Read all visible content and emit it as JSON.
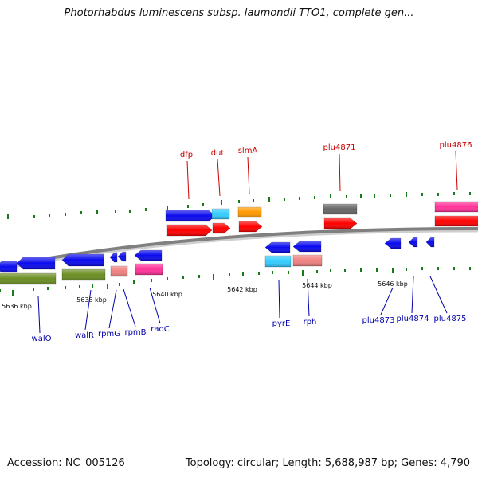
{
  "header": {
    "title": "Photorhabdus luminescens subsp. laumondii TTO1, complete gen..."
  },
  "footer": {
    "accession": "Accession: NC_005126",
    "summary": "Topology: circular; Length: 5,688,987 bp; Genes: 4,790"
  },
  "colors": {
    "forward_label": "#cc0000",
    "reverse_label": "#0000aa",
    "backbone": "#808080",
    "tick": "#1a7a1a"
  },
  "kbp_ticks": [
    "5636 kbp",
    "5638 kbp",
    "5640 kbp",
    "5642 kbp",
    "5644 kbp",
    "5646 kbp"
  ],
  "genes_forward": [
    {
      "name": "dfp",
      "color": "#0a0aee"
    },
    {
      "name": "dut",
      "color": "#33ccff"
    },
    {
      "name": "slmA",
      "color": "#ff9900"
    },
    {
      "name": "plu4871",
      "color": "#666666"
    },
    {
      "name": "plu4876",
      "color": "#ff3399"
    }
  ],
  "genes_reverse": [
    {
      "name": "walO",
      "color": "#0a0aee"
    },
    {
      "name": "walR",
      "color": "#0a0aee"
    },
    {
      "name": "rpmG",
      "color": "#0a0aee"
    },
    {
      "name": "rpmB",
      "color": "#0a0aee"
    },
    {
      "name": "radC",
      "color": "#0a0aee"
    },
    {
      "name": "pyrE",
      "color": "#0a0aee"
    },
    {
      "name": "rph",
      "color": "#0a0aee"
    },
    {
      "name": "plu4873",
      "color": "#0a0aee"
    },
    {
      "name": "plu4874",
      "color": "#0a0aee"
    },
    {
      "name": "plu4875",
      "color": "#0a0aee"
    }
  ]
}
